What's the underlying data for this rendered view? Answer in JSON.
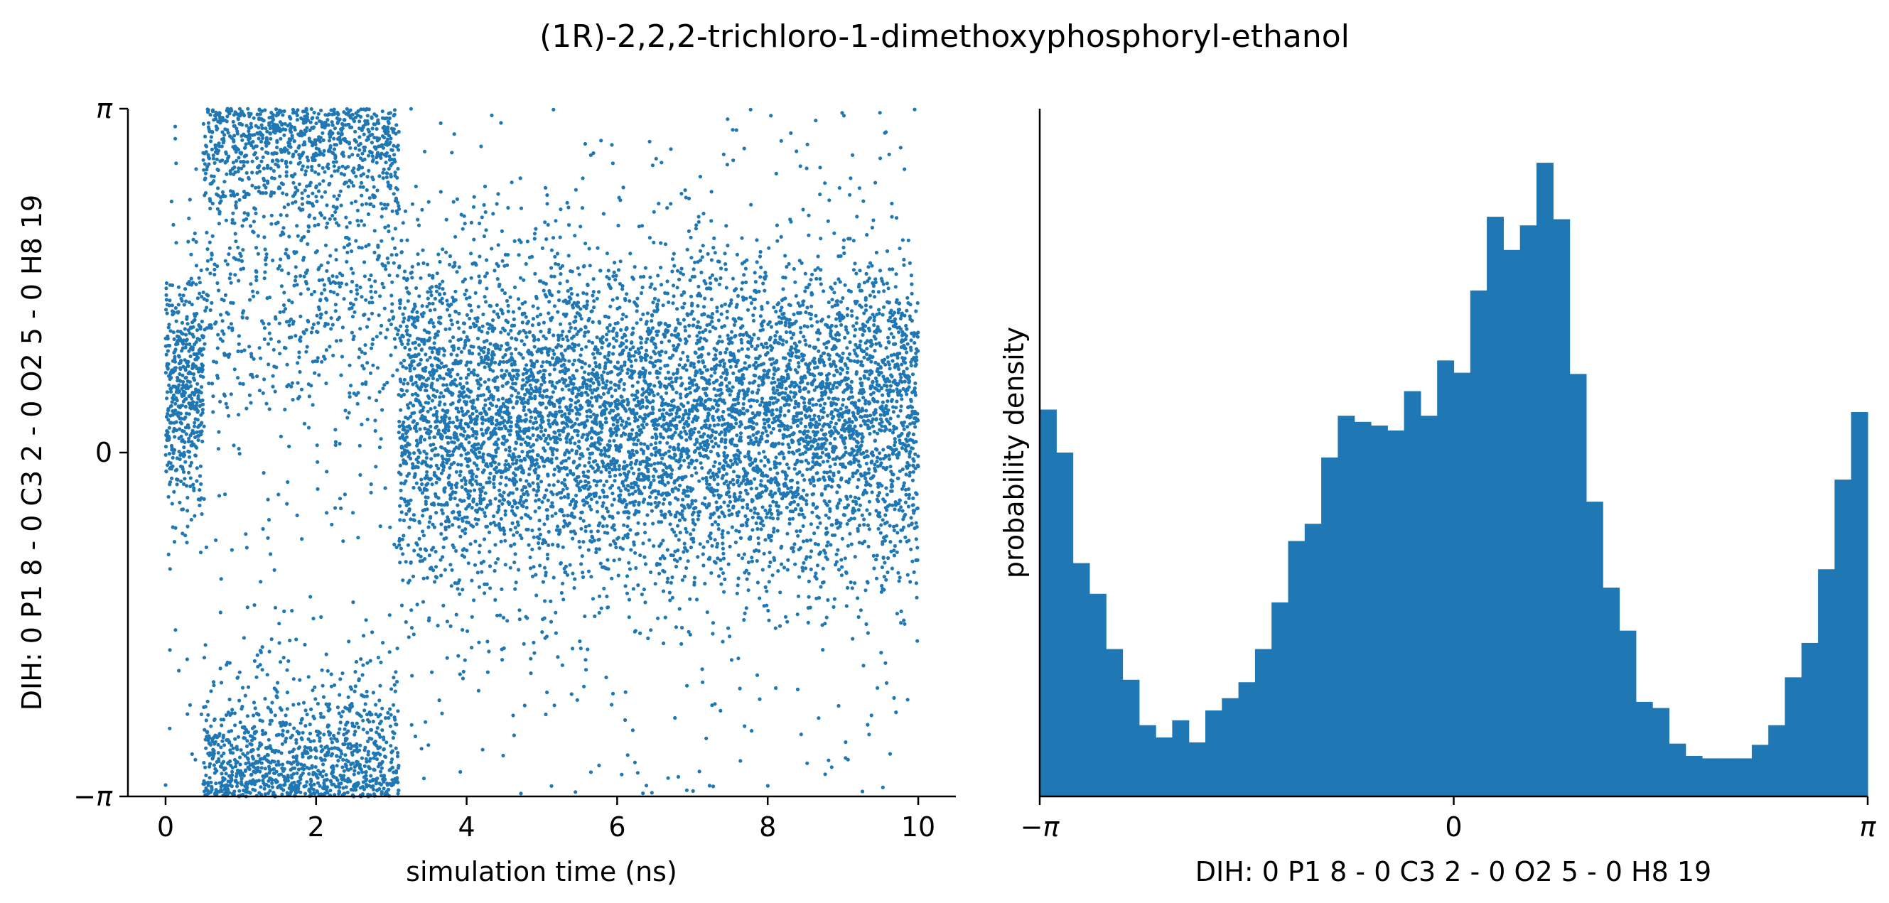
{
  "title": "(1R)-2,2,2-trichloro-1-dimethoxyphosphoryl-ethanol",
  "colors": {
    "series": "#1f77b4",
    "axis": "#000000",
    "background": "#ffffff"
  },
  "chart_data": [
    {
      "type": "scatter",
      "xlabel": "simulation time (ns)",
      "ylabel": "DIH:  0 P1 8 -  0 C3 2 -  0 O2 5 -  0 H8 19",
      "xlim": [
        -0.5,
        10.5
      ],
      "ylim": [
        -3.14159,
        3.14159
      ],
      "xticks": [
        0,
        2,
        4,
        6,
        8,
        10
      ],
      "xtick_labels": [
        "0",
        "2",
        "4",
        "6",
        "8",
        "10"
      ],
      "yticks": [
        -3.14159,
        0,
        3.14159
      ],
      "ytick_labels": [
        "−π",
        "0",
        "π"
      ],
      "grid": false,
      "point_count": 10000,
      "regions": [
        {
          "t": [
            0.0,
            0.5
          ],
          "center": 0.6,
          "spread": 0.55,
          "density": "high"
        },
        {
          "t": [
            0.5,
            3.1
          ],
          "centers": [
            3.14159,
            -3.14159
          ],
          "spread": 0.5,
          "density": "high"
        },
        {
          "t": [
            3.1,
            10.0
          ],
          "center": 0.3,
          "spread": 0.75,
          "density": "high"
        },
        {
          "t": [
            0.0,
            10.0
          ],
          "note": "sparse points spread across full range"
        }
      ]
    },
    {
      "type": "bar",
      "subtype": "histogram",
      "xlabel": "DIH:  0 P1 8 -  0 C3 2 -  0 O2 5 -  0 H8 19",
      "ylabel": "probability density",
      "xlim": [
        -3.14159,
        3.14159
      ],
      "xticks": [
        -3.14159,
        0,
        3.14159
      ],
      "xtick_labels": [
        "−π",
        "0",
        "π"
      ],
      "bins": 50,
      "ylim": [
        0,
        0.56
      ],
      "values": [
        0.315,
        0.28,
        0.19,
        0.165,
        0.12,
        0.095,
        0.058,
        0.048,
        0.062,
        0.044,
        0.07,
        0.08,
        0.093,
        0.12,
        0.158,
        0.208,
        0.222,
        0.276,
        0.31,
        0.305,
        0.302,
        0.298,
        0.33,
        0.31,
        0.355,
        0.345,
        0.412,
        0.472,
        0.445,
        0.465,
        0.516,
        0.47,
        0.344,
        0.24,
        0.17,
        0.135,
        0.077,
        0.072,
        0.043,
        0.033,
        0.031,
        0.031,
        0.031,
        0.042,
        0.058,
        0.097,
        0.125,
        0.185,
        0.258,
        0.313
      ]
    }
  ]
}
